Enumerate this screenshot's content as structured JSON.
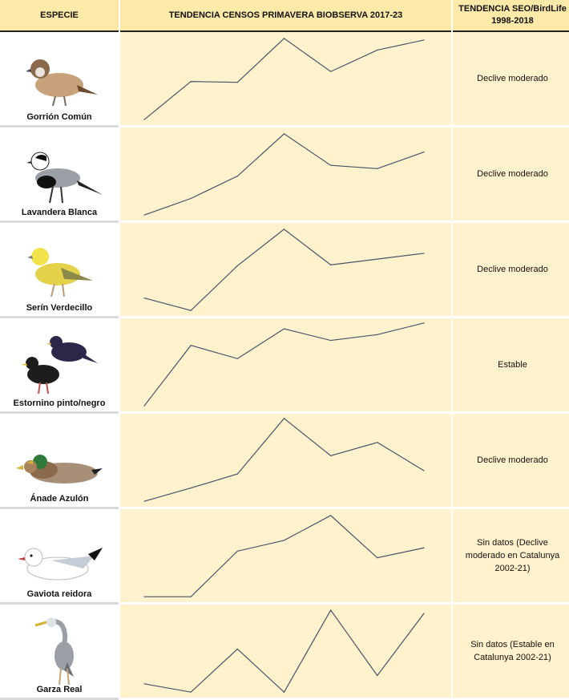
{
  "header": {
    "species": "ESPECIE",
    "census": "TENDENCIA CENSOS PRIMAVERA BIOBSERVA 2017-23",
    "seo_line1": "TENDENCIA SEO/BirdLife",
    "seo_line2": "1998-2018"
  },
  "colors": {
    "header_bg": "#fde9a8",
    "cell_bg": "#fff2cc",
    "line": "#44546a"
  },
  "chart_data": {
    "type": "line",
    "x": [
      2017,
      2018,
      2019,
      2020,
      2021,
      2022,
      2023
    ],
    "series": [
      {
        "species": "Gorrión Común",
        "values": [
          0.0,
          0.46,
          0.45,
          0.98,
          0.58,
          0.84,
          0.96
        ],
        "seo_trend": "Declive moderado"
      },
      {
        "species": "Lavandera Blanca",
        "values": [
          0.0,
          0.2,
          0.47,
          0.98,
          0.6,
          0.56,
          0.76
        ],
        "seo_trend": "Declive moderado"
      },
      {
        "species": "Serín Verdecillo",
        "values": [
          0.15,
          0.0,
          0.54,
          0.98,
          0.55,
          0.62,
          0.69
        ],
        "seo_trend": "Declive moderado"
      },
      {
        "species": "Estornino pinto/negro",
        "values": [
          0.0,
          0.73,
          0.57,
          0.93,
          0.79,
          0.86,
          1.0
        ],
        "seo_trend": "Estable"
      },
      {
        "species": "Ánade Azulón",
        "values": [
          0.0,
          0.16,
          0.33,
          1.0,
          0.55,
          0.71,
          0.37
        ],
        "seo_trend": "Declive moderado"
      },
      {
        "species": "Gaviota reidora",
        "values": [
          0.0,
          0.0,
          0.55,
          0.68,
          0.98,
          0.47,
          0.59
        ],
        "seo_trend": "Sin datos (Declive moderado en Catalunya 2002-21)"
      },
      {
        "species": "Garza Real",
        "values": [
          0.1,
          0.0,
          0.52,
          0.0,
          0.99,
          0.2,
          0.95
        ],
        "seo_trend": "Sin datos (Estable en Catalunya 2002-21)"
      }
    ],
    "title": "TENDENCIA CENSOS PRIMAVERA BIOBSERVA 2017-23",
    "xlabel": "",
    "ylabel": "",
    "ylim": [
      0,
      1
    ],
    "grid": false,
    "legend": "none"
  }
}
